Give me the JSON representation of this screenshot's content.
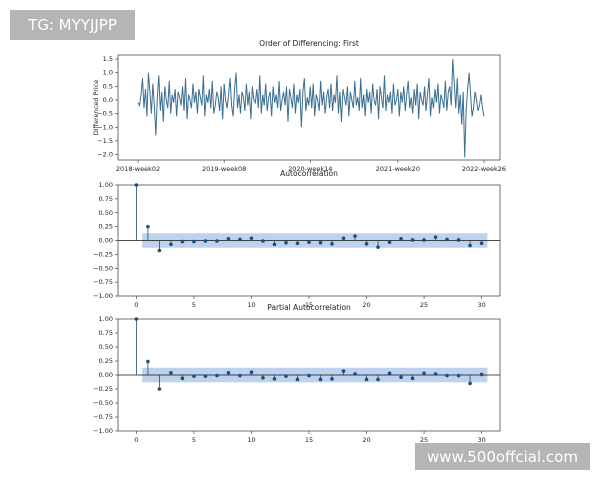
{
  "watermarks": {
    "top_left": "TG: MYYJJPP",
    "bottom_right": "www.500offcial.com"
  },
  "chart_data": [
    {
      "type": "line",
      "title": "Order of Differencing: First",
      "ylabel": "Differenced Price",
      "color": "#3b6e8f",
      "values": [
        -0.1,
        -0.2,
        0.2,
        0.8,
        -0.3,
        0.4,
        -0.6,
        1.0,
        0.3,
        -0.5,
        0.6,
        -0.2,
        -1.3,
        0.1,
        0.9,
        -0.4,
        0.3,
        -0.8,
        0.5,
        0.0,
        -0.3,
        0.7,
        -0.5,
        0.2,
        -0.1,
        0.4,
        -0.6,
        0.3,
        0.1,
        -0.2,
        0.5,
        -0.4,
        0.8,
        -0.7,
        0.2,
        0.0,
        -0.3,
        0.6,
        -0.1,
        0.3,
        -0.5,
        0.4,
        0.1,
        -0.2,
        0.9,
        -0.6,
        0.2,
        -0.1,
        0.4,
        -0.3,
        0.7,
        -0.5,
        -0.2,
        0.3,
        0.1,
        -0.4,
        0.5,
        -0.7,
        0.6,
        0.0,
        -0.3,
        0.2,
        0.8,
        -0.2,
        -0.6,
        0.4,
        1.0,
        -0.3,
        0.2,
        -0.5,
        0.3,
        0.1,
        -0.4,
        0.6,
        -0.2,
        0.3,
        -0.7,
        0.5,
        0.0,
        -0.1,
        0.4,
        -0.3,
        0.9,
        -0.5,
        0.2,
        -0.2,
        0.6,
        -0.4,
        0.1,
        0.3,
        -0.6,
        0.5,
        -0.1,
        0.2,
        -0.3,
        0.7,
        -0.4,
        0.0,
        0.3,
        -0.2,
        0.5,
        -0.8,
        0.4,
        0.1,
        -0.3,
        0.6,
        -0.5,
        0.2,
        -0.1,
        0.4,
        -1.0,
        0.3,
        0.8,
        -0.4,
        0.1,
        -0.2,
        0.5,
        -0.3,
        0.6,
        -0.6,
        0.2,
        0.0,
        -0.4,
        0.7,
        -0.2,
        0.3,
        -0.5,
        0.1,
        0.4,
        -0.3,
        0.6,
        -0.4,
        0.2,
        -0.1,
        0.9,
        -0.5,
        0.3,
        -0.8,
        0.4,
        0.1,
        -0.2,
        0.5,
        -0.6,
        0.3,
        0.0,
        -0.3,
        0.7,
        -0.2,
        0.1,
        -0.4,
        0.8,
        -0.3,
        0.2,
        -0.6,
        0.4,
        -0.1,
        0.3,
        -0.5,
        0.6,
        0.0,
        -0.2,
        0.4,
        -0.7,
        0.5,
        0.1,
        -0.3,
        0.9,
        -0.4,
        0.2,
        -0.1,
        0.3,
        -0.5,
        0.6,
        -0.2,
        0.0,
        0.4,
        -0.6,
        0.3,
        -0.1,
        0.5,
        -0.4,
        0.2,
        0.7,
        -0.3,
        0.1,
        -0.5,
        0.4,
        -0.2,
        0.6,
        -0.7,
        0.3,
        0.0,
        -0.2,
        0.5,
        -0.4,
        0.2,
        0.8,
        -0.6,
        0.1,
        -0.3,
        0.4,
        -0.1,
        0.6,
        -0.5,
        0.2,
        0.0,
        -0.3,
        0.7,
        -0.4,
        0.3,
        0.5,
        -0.2,
        1.5,
        0.6,
        -0.3,
        0.8,
        -0.5,
        0.2,
        -0.9,
        0.3,
        -2.1,
        -0.4,
        0.4,
        1.0,
        0.2,
        -0.6,
        -0.3,
        0.3,
        0.0,
        -0.4,
        -0.2,
        0.2,
        -0.3,
        -0.6
      ],
      "xlim": [
        -13.5,
        243.8
      ],
      "ylim": [
        -2.2,
        1.65
      ],
      "xticks": [
        {
          "value": 0,
          "label": "2018-week02"
        },
        {
          "value": 58,
          "label": "2019-week08"
        },
        {
          "value": 116,
          "label": "2020-week14"
        },
        {
          "value": 175,
          "label": "2021-week20"
        },
        {
          "value": 233,
          "label": "2022-week26"
        }
      ],
      "yticks": [
        1.5,
        {
          "value": 1.0,
          "label": "1.0"
        },
        0.5,
        {
          "value": 0.0,
          "label": "0.0"
        },
        {
          "value": -0.5,
          "label": "−0.5"
        },
        {
          "value": -1.0,
          "label": "−1.0"
        },
        {
          "value": -1.5,
          "label": "−1.5"
        },
        {
          "value": -2.0,
          "label": "−2.0"
        }
      ]
    },
    {
      "type": "stem",
      "title": "Autocorrelation",
      "color": "#1f4e79",
      "band_color": "#aec6e8",
      "confidence_interval": 0.13,
      "x": [
        0,
        1,
        2,
        3,
        4,
        5,
        6,
        7,
        8,
        9,
        10,
        11,
        12,
        13,
        14,
        15,
        16,
        17,
        18,
        19,
        20,
        21,
        22,
        23,
        24,
        25,
        26,
        27,
        28,
        29,
        30
      ],
      "values": [
        1.0,
        0.25,
        -0.18,
        -0.07,
        -0.02,
        -0.02,
        -0.01,
        -0.01,
        0.03,
        0.02,
        0.04,
        -0.01,
        -0.07,
        -0.04,
        -0.05,
        -0.03,
        -0.04,
        -0.06,
        0.04,
        0.08,
        -0.06,
        -0.12,
        -0.03,
        0.03,
        0.01,
        0.01,
        0.06,
        0.02,
        0.01,
        -0.09,
        -0.05
      ],
      "xlim": [
        -1.6,
        31.6
      ],
      "ylim": [
        -1.0,
        1.0
      ],
      "xticks": [
        0,
        5,
        10,
        15,
        20,
        25,
        30
      ],
      "yticks": [
        {
          "value": 1.0,
          "label": "1.00"
        },
        {
          "value": 0.75,
          "label": "0.75"
        },
        {
          "value": 0.5,
          "label": "0.50"
        },
        {
          "value": 0.25,
          "label": "0.25"
        },
        {
          "value": 0.0,
          "label": "0.00"
        },
        {
          "value": -0.25,
          "label": "−0.25"
        },
        {
          "value": -0.5,
          "label": "−0.50"
        },
        {
          "value": -0.75,
          "label": "−0.75"
        },
        {
          "value": -1.0,
          "label": "−1.00"
        }
      ]
    },
    {
      "type": "stem",
      "title": "Partial Autocorrelation",
      "color": "#1f4e79",
      "band_color": "#aec6e8",
      "confidence_interval": 0.13,
      "x": [
        0,
        1,
        2,
        3,
        4,
        5,
        6,
        7,
        8,
        9,
        10,
        11,
        12,
        13,
        14,
        15,
        16,
        17,
        18,
        19,
        20,
        21,
        22,
        23,
        24,
        25,
        26,
        27,
        28,
        29,
        30
      ],
      "values": [
        1.0,
        0.24,
        -0.25,
        0.04,
        -0.06,
        -0.02,
        -0.02,
        -0.01,
        0.04,
        -0.01,
        0.05,
        -0.05,
        -0.07,
        -0.02,
        -0.08,
        -0.01,
        -0.08,
        -0.07,
        0.07,
        0.02,
        -0.08,
        -0.08,
        0.03,
        -0.04,
        -0.06,
        0.03,
        0.02,
        -0.01,
        -0.01,
        -0.15,
        0.01
      ],
      "xlim": [
        -1.6,
        31.6
      ],
      "ylim": [
        -1.0,
        1.0
      ],
      "xticks": [
        0,
        5,
        10,
        15,
        20,
        25,
        30
      ],
      "yticks": [
        {
          "value": 1.0,
          "label": "1.00"
        },
        {
          "value": 0.75,
          "label": "0.75"
        },
        {
          "value": 0.5,
          "label": "0.50"
        },
        {
          "value": 0.25,
          "label": "0.25"
        },
        {
          "value": 0.0,
          "label": "0.00"
        },
        {
          "value": -0.25,
          "label": "−0.25"
        },
        {
          "value": -0.5,
          "label": "−0.50"
        },
        {
          "value": -0.75,
          "label": "−0.75"
        },
        {
          "value": -1.0,
          "label": "−1.00"
        }
      ]
    }
  ]
}
